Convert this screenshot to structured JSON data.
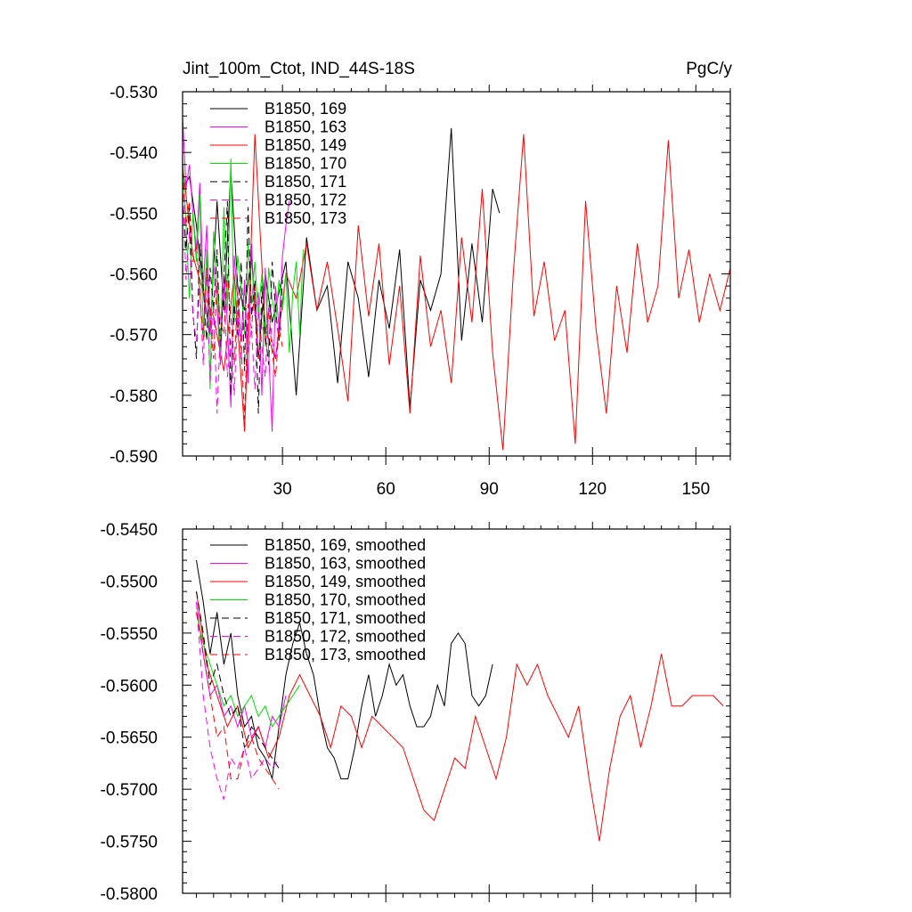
{
  "chart_data": [
    {
      "type": "line",
      "title": "Jint_100m_Ctot, IND_44S-18S",
      "units": "PgC/y",
      "xlabel": "",
      "ylabel": "",
      "xlim": [
        1,
        160
      ],
      "ylim": [
        -0.59,
        -0.53
      ],
      "xticks": [
        30,
        60,
        90,
        120,
        150
      ],
      "xtick_labels": [
        "30",
        "60",
        "90",
        "120",
        "150"
      ],
      "yticks": [
        -0.53,
        -0.54,
        -0.55,
        -0.56,
        -0.57,
        -0.58,
        -0.59
      ],
      "ytick_labels": [
        "-0.530",
        "-0.540",
        "-0.550",
        "-0.560",
        "-0.570",
        "-0.580",
        "-0.590"
      ],
      "legend_position": "top-left",
      "series": [
        {
          "name": "B1850, 169",
          "color": "#000000",
          "dash": "solid",
          "x": [
            1,
            3,
            5,
            7,
            9,
            11,
            13,
            15,
            17,
            19,
            21,
            23,
            25,
            27,
            29,
            31,
            34,
            37,
            40,
            43,
            46,
            49,
            52,
            55,
            58,
            61,
            64,
            67,
            70,
            73,
            76,
            79,
            82,
            85,
            88,
            91,
            93
          ],
          "y": [
            -0.546,
            -0.544,
            -0.552,
            -0.563,
            -0.57,
            -0.548,
            -0.566,
            -0.543,
            -0.562,
            -0.566,
            -0.557,
            -0.574,
            -0.56,
            -0.568,
            -0.563,
            -0.558,
            -0.58,
            -0.554,
            -0.566,
            -0.562,
            -0.578,
            -0.558,
            -0.564,
            -0.577,
            -0.561,
            -0.569,
            -0.556,
            -0.582,
            -0.561,
            -0.566,
            -0.56,
            -0.536,
            -0.571,
            -0.555,
            -0.568,
            -0.546,
            -0.55
          ]
        },
        {
          "name": "B1850, 163",
          "color": "#ff00ff",
          "dash": "solid",
          "x": [
            1,
            2,
            3,
            4,
            5,
            6,
            7,
            8,
            9,
            10,
            11,
            12,
            13,
            14,
            15,
            16,
            17,
            18,
            19,
            20,
            21,
            22,
            23,
            24,
            25,
            26,
            27,
            28,
            29,
            30,
            31,
            32
          ],
          "y": [
            -0.534,
            -0.546,
            -0.542,
            -0.55,
            -0.556,
            -0.545,
            -0.562,
            -0.552,
            -0.57,
            -0.558,
            -0.565,
            -0.575,
            -0.56,
            -0.568,
            -0.582,
            -0.557,
            -0.564,
            -0.571,
            -0.561,
            -0.578,
            -0.555,
            -0.567,
            -0.563,
            -0.58,
            -0.559,
            -0.573,
            -0.586,
            -0.562,
            -0.569,
            -0.557,
            -0.552,
            -0.548
          ]
        },
        {
          "name": "B1850, 149",
          "color": "#ff0000",
          "dash": "solid",
          "x": [
            1,
            4,
            7,
            10,
            13,
            16,
            19,
            22,
            25,
            28,
            31,
            34,
            37,
            40,
            43,
            46,
            49,
            52,
            55,
            58,
            61,
            64,
            67,
            70,
            73,
            76,
            79,
            82,
            85,
            88,
            91,
            94,
            97,
            100,
            103,
            106,
            109,
            112,
            115,
            118,
            121,
            124,
            127,
            130,
            133,
            136,
            139,
            142,
            145,
            148,
            151,
            154,
            157,
            160
          ],
          "y": [
            -0.542,
            -0.557,
            -0.563,
            -0.567,
            -0.576,
            -0.56,
            -0.586,
            -0.537,
            -0.569,
            -0.574,
            -0.56,
            -0.564,
            -0.555,
            -0.566,
            -0.558,
            -0.569,
            -0.581,
            -0.552,
            -0.567,
            -0.555,
            -0.575,
            -0.562,
            -0.583,
            -0.557,
            -0.572,
            -0.566,
            -0.578,
            -0.554,
            -0.568,
            -0.546,
            -0.573,
            -0.589,
            -0.56,
            -0.537,
            -0.567,
            -0.558,
            -0.571,
            -0.566,
            -0.588,
            -0.548,
            -0.569,
            -0.583,
            -0.562,
            -0.573,
            -0.555,
            -0.568,
            -0.562,
            -0.538,
            -0.564,
            -0.556,
            -0.568,
            -0.56,
            -0.566,
            -0.559
          ]
        },
        {
          "name": "B1850, 170",
          "color": "#00e000",
          "dash": "solid",
          "x": [
            1,
            2,
            3,
            4,
            5,
            6,
            7,
            8,
            9,
            10,
            11,
            12,
            13,
            14,
            15,
            16,
            17,
            18,
            19,
            20,
            21,
            22,
            23,
            24,
            25,
            26,
            27,
            28,
            29,
            30,
            31,
            32,
            33,
            34,
            35,
            36
          ],
          "y": [
            -0.541,
            -0.552,
            -0.564,
            -0.55,
            -0.558,
            -0.547,
            -0.57,
            -0.556,
            -0.579,
            -0.553,
            -0.561,
            -0.574,
            -0.549,
            -0.566,
            -0.541,
            -0.568,
            -0.557,
            -0.562,
            -0.57,
            -0.555,
            -0.565,
            -0.558,
            -0.567,
            -0.56,
            -0.572,
            -0.559,
            -0.564,
            -0.568,
            -0.561,
            -0.566,
            -0.56,
            -0.573,
            -0.563,
            -0.558,
            -0.57,
            -0.556
          ]
        },
        {
          "name": "B1850, 171",
          "color": "#000000",
          "dash": "dash",
          "x": [
            1,
            2,
            3,
            4,
            5,
            6,
            7,
            8,
            9,
            10,
            11,
            12,
            13,
            14,
            15,
            16,
            17,
            18,
            19,
            20,
            21,
            22,
            23,
            24,
            25,
            26,
            27,
            28,
            29,
            30
          ],
          "y": [
            -0.547,
            -0.556,
            -0.549,
            -0.566,
            -0.574,
            -0.555,
            -0.562,
            -0.571,
            -0.559,
            -0.566,
            -0.556,
            -0.572,
            -0.561,
            -0.548,
            -0.58,
            -0.565,
            -0.57,
            -0.558,
            -0.576,
            -0.549,
            -0.567,
            -0.561,
            -0.583,
            -0.562,
            -0.57,
            -0.575,
            -0.558,
            -0.566,
            -0.571,
            -0.561
          ]
        },
        {
          "name": "B1850, 172",
          "color": "#ff00ff",
          "dash": "dash",
          "x": [
            1,
            2,
            3,
            4,
            5,
            6,
            7,
            8,
            9,
            10,
            11,
            12,
            13,
            14,
            15,
            16,
            17,
            18,
            19,
            20,
            21,
            22,
            23,
            24,
            25,
            26,
            27,
            28,
            29,
            30
          ],
          "y": [
            -0.545,
            -0.561,
            -0.553,
            -0.567,
            -0.571,
            -0.562,
            -0.575,
            -0.559,
            -0.578,
            -0.565,
            -0.583,
            -0.569,
            -0.562,
            -0.577,
            -0.571,
            -0.58,
            -0.566,
            -0.574,
            -0.562,
            -0.573,
            -0.569,
            -0.579,
            -0.566,
            -0.572,
            -0.577,
            -0.565,
            -0.571,
            -0.574,
            -0.568,
            -0.57
          ]
        },
        {
          "name": "B1850, 173",
          "color": "#ff0000",
          "dash": "dash",
          "x": [
            1,
            2,
            3,
            4,
            5,
            6,
            7,
            8,
            9,
            10,
            11,
            12,
            13,
            14,
            15,
            16,
            17,
            18,
            19,
            20,
            21,
            22,
            23,
            24,
            25,
            26,
            27,
            28,
            29,
            30
          ],
          "y": [
            -0.543,
            -0.552,
            -0.548,
            -0.558,
            -0.555,
            -0.563,
            -0.571,
            -0.559,
            -0.566,
            -0.574,
            -0.561,
            -0.568,
            -0.57,
            -0.56,
            -0.567,
            -0.575,
            -0.563,
            -0.572,
            -0.584,
            -0.565,
            -0.569,
            -0.562,
            -0.574,
            -0.568,
            -0.571,
            -0.566,
            -0.573,
            -0.577,
            -0.569,
            -0.572
          ]
        }
      ]
    },
    {
      "type": "line",
      "title": "",
      "xlabel": "",
      "ylabel": "",
      "xlim": [
        1,
        160
      ],
      "ylim": [
        -0.58,
        -0.545
      ],
      "xticks": [
        30,
        60,
        90,
        120,
        150
      ],
      "yticks": [
        -0.545,
        -0.55,
        -0.555,
        -0.56,
        -0.565,
        -0.57,
        -0.575,
        -0.58
      ],
      "ytick_labels": [
        "-0.5450",
        "-0.5500",
        "-0.5550",
        "-0.5600",
        "-0.5650",
        "-0.5700",
        "-0.5750",
        "-0.5800"
      ],
      "legend_position": "top-left",
      "series": [
        {
          "name": "B1850, 169, smoothed",
          "color": "#000000",
          "dash": "solid",
          "x": [
            5,
            7,
            9,
            11,
            13,
            15,
            17,
            19,
            21,
            23,
            25,
            27,
            29,
            31,
            33,
            35,
            37,
            39,
            41,
            43,
            45,
            47,
            49,
            51,
            53,
            55,
            57,
            59,
            61,
            63,
            65,
            67,
            69,
            71,
            73,
            75,
            77,
            79,
            81,
            83,
            85,
            87,
            89,
            91
          ],
          "y": [
            -0.548,
            -0.552,
            -0.557,
            -0.553,
            -0.558,
            -0.555,
            -0.561,
            -0.564,
            -0.563,
            -0.566,
            -0.567,
            -0.569,
            -0.564,
            -0.559,
            -0.556,
            -0.554,
            -0.557,
            -0.559,
            -0.563,
            -0.566,
            -0.567,
            -0.569,
            -0.569,
            -0.566,
            -0.562,
            -0.559,
            -0.563,
            -0.561,
            -0.558,
            -0.56,
            -0.559,
            -0.562,
            -0.564,
            -0.564,
            -0.563,
            -0.56,
            -0.562,
            -0.556,
            -0.555,
            -0.556,
            -0.561,
            -0.562,
            -0.561,
            -0.558
          ]
        },
        {
          "name": "B1850, 163, smoothed",
          "color": "#ff00ff",
          "dash": "solid",
          "x": [
            5,
            7,
            9,
            11,
            13,
            15,
            17,
            19,
            21,
            23,
            25,
            27,
            29,
            31
          ],
          "y": [
            -0.552,
            -0.557,
            -0.561,
            -0.56,
            -0.563,
            -0.562,
            -0.564,
            -0.562,
            -0.565,
            -0.564,
            -0.566,
            -0.563,
            -0.564,
            -0.561
          ]
        },
        {
          "name": "B1850, 149, smoothed",
          "color": "#ff0000",
          "dash": "solid",
          "x": [
            5,
            8,
            11,
            14,
            17,
            20,
            23,
            26,
            29,
            32,
            35,
            38,
            41,
            44,
            47,
            50,
            53,
            56,
            59,
            62,
            65,
            68,
            71,
            74,
            77,
            80,
            83,
            86,
            89,
            92,
            95,
            98,
            101,
            104,
            107,
            110,
            113,
            116,
            119,
            122,
            125,
            128,
            131,
            134,
            137,
            140,
            143,
            146,
            149,
            152,
            155,
            158
          ],
          "y": [
            -0.551,
            -0.558,
            -0.561,
            -0.564,
            -0.562,
            -0.566,
            -0.564,
            -0.567,
            -0.565,
            -0.561,
            -0.559,
            -0.561,
            -0.563,
            -0.566,
            -0.562,
            -0.563,
            -0.566,
            -0.563,
            -0.564,
            -0.565,
            -0.566,
            -0.569,
            -0.572,
            -0.573,
            -0.57,
            -0.567,
            -0.568,
            -0.563,
            -0.566,
            -0.569,
            -0.565,
            -0.558,
            -0.56,
            -0.558,
            -0.561,
            -0.563,
            -0.565,
            -0.562,
            -0.569,
            -0.575,
            -0.568,
            -0.563,
            -0.561,
            -0.566,
            -0.562,
            -0.557,
            -0.562,
            -0.562,
            -0.561,
            -0.561,
            -0.561,
            -0.562
          ]
        },
        {
          "name": "B1850, 170, smoothed",
          "color": "#00e000",
          "dash": "solid",
          "x": [
            5,
            7,
            9,
            11,
            13,
            15,
            17,
            19,
            21,
            23,
            25,
            27,
            29,
            31,
            33,
            35
          ],
          "y": [
            -0.553,
            -0.556,
            -0.558,
            -0.56,
            -0.562,
            -0.561,
            -0.563,
            -0.562,
            -0.561,
            -0.563,
            -0.562,
            -0.564,
            -0.563,
            -0.562,
            -0.561,
            -0.56
          ]
        },
        {
          "name": "B1850, 171, smoothed",
          "color": "#000000",
          "dash": "dash",
          "x": [
            5,
            7,
            9,
            11,
            13,
            15,
            17,
            19,
            21,
            23,
            25,
            27,
            29
          ],
          "y": [
            -0.551,
            -0.555,
            -0.56,
            -0.558,
            -0.561,
            -0.563,
            -0.562,
            -0.566,
            -0.564,
            -0.565,
            -0.566,
            -0.567,
            -0.568
          ]
        },
        {
          "name": "B1850, 172, smoothed",
          "color": "#ff00ff",
          "dash": "dash",
          "x": [
            5,
            7,
            9,
            11,
            13,
            15,
            17,
            19,
            21,
            23,
            25,
            27,
            29
          ],
          "y": [
            -0.552,
            -0.561,
            -0.566,
            -0.569,
            -0.571,
            -0.567,
            -0.568,
            -0.566,
            -0.569,
            -0.568,
            -0.567,
            -0.568,
            -0.567
          ]
        },
        {
          "name": "B1850, 173, smoothed",
          "color": "#ff0000",
          "dash": "dash",
          "x": [
            5,
            7,
            9,
            11,
            13,
            15,
            17,
            19,
            21,
            23,
            25,
            27,
            29
          ],
          "y": [
            -0.553,
            -0.557,
            -0.561,
            -0.565,
            -0.564,
            -0.569,
            -0.569,
            -0.566,
            -0.565,
            -0.567,
            -0.568,
            -0.569,
            -0.57
          ]
        }
      ]
    }
  ]
}
